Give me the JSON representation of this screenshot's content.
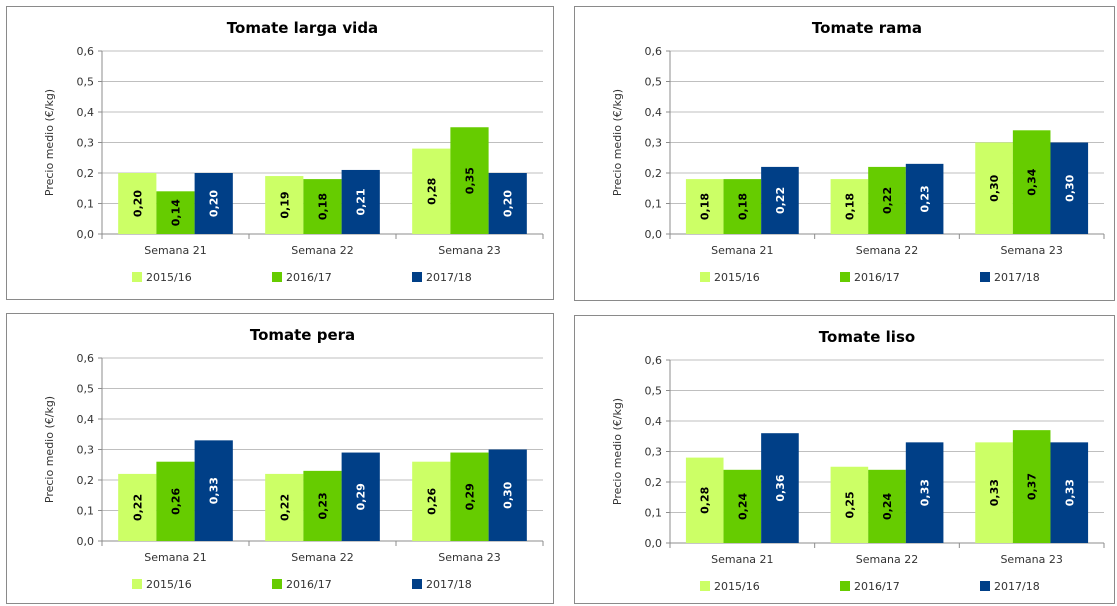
{
  "colors": {
    "2015/16": "#ccff66",
    "2016/17": "#66cc00",
    "2017/18": "#003f87"
  },
  "chart_data": [
    {
      "type": "bar",
      "title": "Tomate larga vida",
      "ylabel": "Precio medio (€/kg)",
      "ylim": [
        0,
        0.6
      ],
      "yticks": [
        "0,0",
        "0,1",
        "0,2",
        "0,3",
        "0,4",
        "0,5",
        "0,6"
      ],
      "grid": true,
      "legend": "bottom",
      "categories": [
        "Semana 21",
        "Semana 22",
        "Semana 23"
      ],
      "series": [
        {
          "name": "2015/16",
          "values": [
            0.2,
            0.19,
            0.28
          ],
          "labels": [
            "0,20",
            "0,19",
            "0,28"
          ]
        },
        {
          "name": "2016/17",
          "values": [
            0.14,
            0.18,
            0.35
          ],
          "labels": [
            "0,14",
            "0,18",
            "0,35"
          ]
        },
        {
          "name": "2017/18",
          "values": [
            0.2,
            0.21,
            0.2
          ],
          "labels": [
            "0,20",
            "0,21",
            "0,20"
          ]
        }
      ]
    },
    {
      "type": "bar",
      "title": "Tomate rama",
      "ylabel": "Precio medio (€/kg)",
      "ylim": [
        0,
        0.6
      ],
      "yticks": [
        "0,0",
        "0,1",
        "0,2",
        "0,3",
        "0,4",
        "0,5",
        "0,6"
      ],
      "grid": true,
      "legend": "bottom",
      "categories": [
        "Semana 21",
        "Semana 22",
        "Semana 23"
      ],
      "series": [
        {
          "name": "2015/16",
          "values": [
            0.18,
            0.18,
            0.3
          ],
          "labels": [
            "0,18",
            "0,18",
            "0,30"
          ]
        },
        {
          "name": "2016/17",
          "values": [
            0.18,
            0.22,
            0.34
          ],
          "labels": [
            "0,18",
            "0,22",
            "0,34"
          ]
        },
        {
          "name": "2017/18",
          "values": [
            0.22,
            0.23,
            0.3
          ],
          "labels": [
            "0,22",
            "0,23",
            "0,30"
          ]
        }
      ]
    },
    {
      "type": "bar",
      "title": "Tomate pera",
      "ylabel": "Precio medio (€/kg)",
      "ylim": [
        0,
        0.6
      ],
      "yticks": [
        "0,0",
        "0,1",
        "0,2",
        "0,3",
        "0,4",
        "0,5",
        "0,6"
      ],
      "grid": true,
      "legend": "bottom",
      "categories": [
        "Semana 21",
        "Semana 22",
        "Semana 23"
      ],
      "series": [
        {
          "name": "2015/16",
          "values": [
            0.22,
            0.22,
            0.26
          ],
          "labels": [
            "0,22",
            "0,22",
            "0,26"
          ]
        },
        {
          "name": "2016/17",
          "values": [
            0.26,
            0.23,
            0.29
          ],
          "labels": [
            "0,26",
            "0,23",
            "0,29"
          ]
        },
        {
          "name": "2017/18",
          "values": [
            0.33,
            0.29,
            0.3
          ],
          "labels": [
            "0,33",
            "0,29",
            "0,30"
          ]
        }
      ]
    },
    {
      "type": "bar",
      "title": "Tomate liso",
      "ylabel": "Precio medio (€/kg)",
      "ylim": [
        0,
        0.6
      ],
      "yticks": [
        "0,0",
        "0,1",
        "0,2",
        "0,3",
        "0,4",
        "0,5",
        "0,6"
      ],
      "grid": true,
      "legend": "bottom",
      "categories": [
        "Semana 21",
        "Semana 22",
        "Semana 23"
      ],
      "series": [
        {
          "name": "2015/16",
          "values": [
            0.28,
            0.25,
            0.33
          ],
          "labels": [
            "0,28",
            "0,25",
            "0,33"
          ]
        },
        {
          "name": "2016/17",
          "values": [
            0.24,
            0.24,
            0.37
          ],
          "labels": [
            "0,24",
            "0,24",
            "0,37"
          ]
        },
        {
          "name": "2017/18",
          "values": [
            0.36,
            0.33,
            0.33
          ],
          "labels": [
            "0,36",
            "0,33",
            "0,33"
          ]
        }
      ]
    }
  ]
}
